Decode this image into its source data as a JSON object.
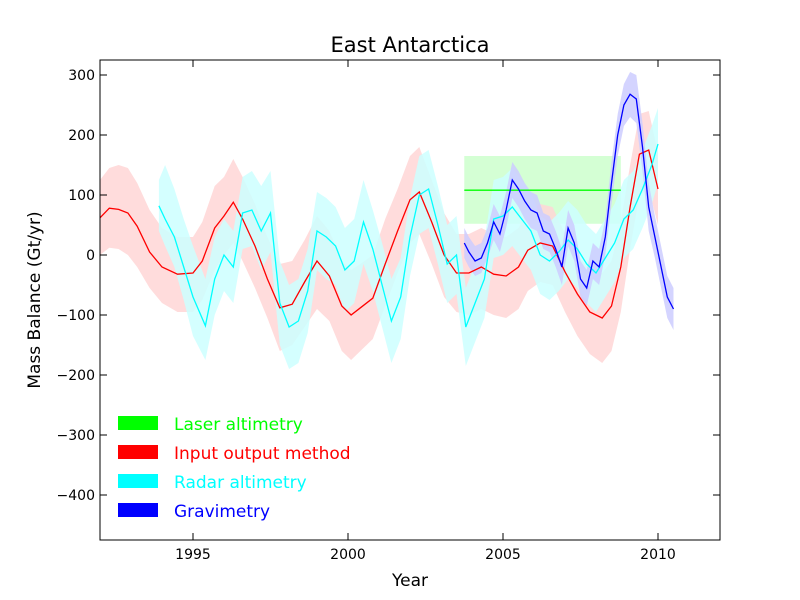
{
  "chart_data": {
    "type": "line",
    "title": "East Antarctica",
    "xlabel": "Year",
    "ylabel": "Mass Balance (Gt/yr)",
    "xlim": [
      1992,
      2012
    ],
    "ylim": [
      -475,
      325
    ],
    "xticks": [
      1995,
      2000,
      2005,
      2010
    ],
    "yticks": [
      -400,
      -300,
      -200,
      -100,
      0,
      100,
      200,
      300
    ],
    "xtick_labels": [
      "1995",
      "2000",
      "2005",
      "2010"
    ],
    "ytick_labels": [
      "−400",
      "−300",
      "−200",
      "−100",
      "0",
      "100",
      "200",
      "300"
    ],
    "grid": false,
    "legend_position": "lower-left",
    "legend": [
      {
        "label": "Laser altimetry",
        "color": "#00ff00"
      },
      {
        "label": "Input output method",
        "color": "#ff0000"
      },
      {
        "label": "Radar altimetry",
        "color": "#00ffff"
      },
      {
        "label": "Gravimetry",
        "color": "#0000ff"
      }
    ],
    "series": [
      {
        "name": "Laser altimetry",
        "color": "#00ff00",
        "band_color": "#ccffcc",
        "x": [
          2003.75,
          2008.8
        ],
        "y": [
          108,
          108
        ],
        "lower": [
          52,
          52
        ],
        "upper": [
          165,
          165
        ]
      },
      {
        "name": "Input output method",
        "color": "#ff0000",
        "band_color": "#ffd6d6",
        "x": [
          1992.0,
          1992.3,
          1992.6,
          1992.9,
          1993.2,
          1993.6,
          1994.0,
          1994.5,
          1995.0,
          1995.3,
          1995.7,
          1996.0,
          1996.3,
          1996.6,
          1997.0,
          1997.4,
          1997.8,
          1998.2,
          1998.6,
          1999.0,
          1999.4,
          1999.8,
          2000.1,
          2000.4,
          2000.8,
          2001.2,
          2001.6,
          2002.0,
          2002.3,
          2002.7,
          2003.1,
          2003.5,
          2003.9,
          2004.3,
          2004.7,
          2005.1,
          2005.5,
          2005.8,
          2006.2,
          2006.6,
          2007.0,
          2007.4,
          2007.8,
          2008.2,
          2008.5,
          2008.8,
          2009.1,
          2009.4,
          2009.7,
          2010.0
        ],
        "y": [
          62,
          78,
          76,
          70,
          48,
          5,
          -20,
          -32,
          -30,
          -10,
          45,
          65,
          88,
          60,
          15,
          -40,
          -88,
          -82,
          -45,
          -10,
          -35,
          -85,
          -100,
          -88,
          -72,
          -15,
          40,
          92,
          105,
          55,
          0,
          -30,
          -30,
          -20,
          -32,
          -35,
          -20,
          8,
          20,
          15,
          -28,
          -65,
          -95,
          -105,
          -85,
          -20,
          80,
          168,
          175,
          110
        ],
        "lower": [
          0,
          12,
          10,
          0,
          -20,
          -55,
          -80,
          -95,
          -95,
          -75,
          -25,
          0,
          20,
          -10,
          -55,
          -105,
          -160,
          -150,
          -120,
          -90,
          -110,
          -160,
          -175,
          -160,
          -140,
          -85,
          -30,
          20,
          35,
          -15,
          -70,
          -95,
          -100,
          -90,
          -100,
          -105,
          -90,
          -60,
          -45,
          -50,
          -95,
          -135,
          -165,
          -180,
          -160,
          -95,
          10,
          100,
          110,
          50
        ],
        "upper": [
          125,
          145,
          150,
          145,
          120,
          75,
          45,
          30,
          30,
          55,
          115,
          130,
          160,
          130,
          85,
          30,
          -15,
          -10,
          25,
          65,
          40,
          -10,
          -25,
          -15,
          0,
          60,
          110,
          165,
          180,
          125,
          70,
          35,
          35,
          45,
          35,
          30,
          45,
          75,
          85,
          80,
          35,
          0,
          -25,
          -30,
          -10,
          55,
          150,
          235,
          240,
          170
        ]
      },
      {
        "name": "Radar altimetry",
        "color": "#00ffff",
        "band_color": "#ccffff",
        "x": [
          1993.9,
          1994.1,
          1994.4,
          1994.7,
          1995.0,
          1995.4,
          1995.7,
          1996.0,
          1996.3,
          1996.6,
          1996.9,
          1997.2,
          1997.5,
          1997.8,
          1998.1,
          1998.4,
          1998.7,
          1999.0,
          1999.3,
          1999.6,
          1999.9,
          2000.2,
          2000.5,
          2000.8,
          2001.1,
          2001.4,
          2001.7,
          2002.0,
          2002.3,
          2002.6,
          2002.9,
          2003.2,
          2003.5,
          2003.8,
          2004.1,
          2004.4,
          2004.7,
          2005.0,
          2005.3,
          2005.6,
          2005.9,
          2006.2,
          2006.5,
          2006.8,
          2007.1,
          2007.4,
          2007.7,
          2008.0,
          2008.3,
          2008.6,
          2008.9,
          2009.2,
          2009.5,
          2009.8,
          2010.0
        ],
        "y": [
          82,
          60,
          30,
          -20,
          -70,
          -118,
          -40,
          0,
          -20,
          70,
          75,
          40,
          70,
          -80,
          -120,
          -110,
          -60,
          40,
          30,
          15,
          -25,
          -10,
          55,
          10,
          -50,
          -110,
          -70,
          30,
          100,
          110,
          50,
          -15,
          0,
          -120,
          -80,
          -40,
          60,
          65,
          80,
          60,
          40,
          0,
          -10,
          5,
          25,
          10,
          -15,
          -30,
          -5,
          20,
          60,
          75,
          110,
          150,
          185
        ],
        "lower": [
          40,
          15,
          -20,
          -75,
          -135,
          -175,
          -100,
          -60,
          -80,
          10,
          15,
          -25,
          5,
          -150,
          -190,
          -180,
          -130,
          -25,
          -40,
          -50,
          -95,
          -80,
          -15,
          -60,
          -120,
          -180,
          -140,
          -35,
          35,
          45,
          -15,
          -80,
          -65,
          -185,
          -145,
          -105,
          -5,
          0,
          15,
          -5,
          -25,
          -65,
          -75,
          -60,
          -40,
          -55,
          -80,
          -95,
          -70,
          -45,
          -5,
          10,
          45,
          85,
          120
        ],
        "upper": [
          125,
          150,
          110,
          60,
          15,
          -40,
          30,
          60,
          40,
          130,
          140,
          115,
          140,
          -10,
          -50,
          -40,
          10,
          105,
          95,
          80,
          45,
          60,
          125,
          75,
          20,
          -40,
          -5,
          95,
          165,
          175,
          115,
          50,
          65,
          -55,
          -15,
          25,
          125,
          130,
          145,
          125,
          105,
          65,
          55,
          70,
          90,
          75,
          50,
          35,
          60,
          85,
          125,
          140,
          175,
          215,
          245
        ]
      },
      {
        "name": "Gravimetry",
        "color": "#0000ff",
        "band_color": "#ccccff",
        "x": [
          2003.75,
          2003.9,
          2004.1,
          2004.3,
          2004.5,
          2004.7,
          2004.9,
          2005.1,
          2005.3,
          2005.5,
          2005.7,
          2005.9,
          2006.1,
          2006.3,
          2006.5,
          2006.7,
          2006.9,
          2007.1,
          2007.3,
          2007.5,
          2007.7,
          2007.9,
          2008.1,
          2008.3,
          2008.5,
          2008.7,
          2008.9,
          2009.1,
          2009.3,
          2009.5,
          2009.7,
          2009.9,
          2010.1,
          2010.3,
          2010.5
        ],
        "y": [
          20,
          5,
          -10,
          -5,
          20,
          55,
          35,
          75,
          125,
          110,
          90,
          75,
          70,
          40,
          35,
          10,
          -20,
          45,
          20,
          -40,
          -55,
          -10,
          -20,
          30,
          120,
          200,
          250,
          268,
          260,
          180,
          80,
          30,
          -20,
          -70,
          -90
        ],
        "lower": [
          -5,
          -20,
          -35,
          -30,
          -5,
          25,
          5,
          45,
          95,
          80,
          60,
          45,
          40,
          10,
          5,
          -20,
          -50,
          15,
          -10,
          -70,
          -85,
          -40,
          -50,
          0,
          85,
          165,
          215,
          230,
          220,
          140,
          40,
          -5,
          -55,
          -105,
          -125
        ],
        "upper": [
          45,
          30,
          15,
          20,
          45,
          85,
          65,
          105,
          155,
          140,
          120,
          105,
          100,
          70,
          65,
          40,
          10,
          75,
          50,
          -10,
          -25,
          20,
          10,
          60,
          155,
          235,
          285,
          305,
          300,
          220,
          120,
          65,
          15,
          -35,
          -55
        ]
      }
    ]
  }
}
